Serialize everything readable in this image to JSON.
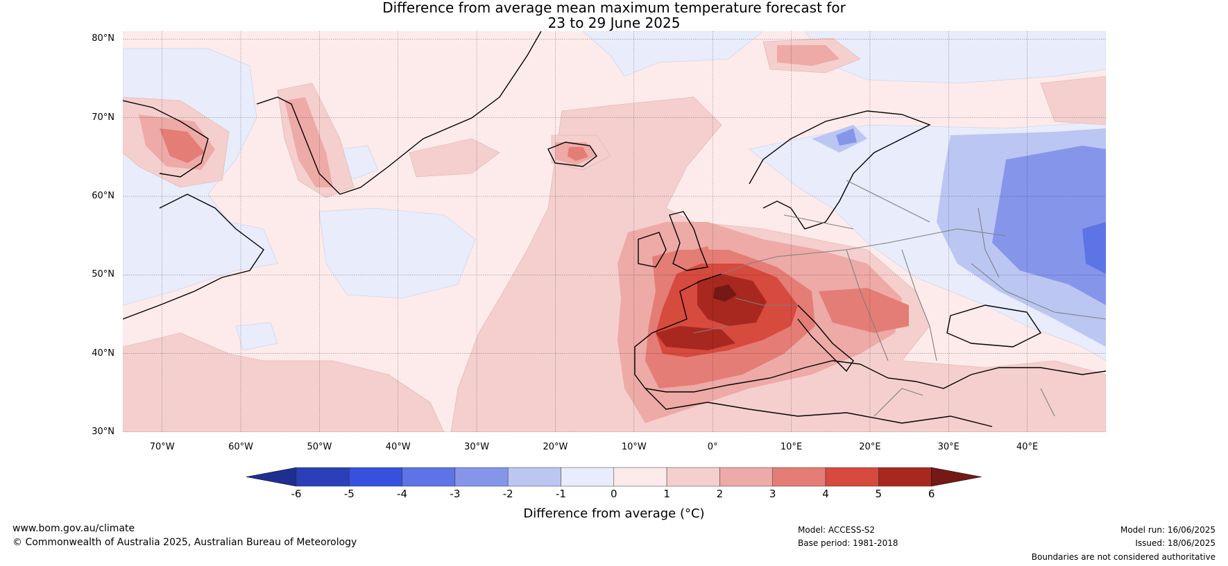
{
  "title_line1": "Difference from average mean maximum temperature forecast for",
  "title_line2": "23 to 29 June 2025",
  "lat_labels": [
    "80°N",
    "70°N",
    "60°N",
    "50°N",
    "40°N",
    "30°N"
  ],
  "lat_values": [
    80,
    70,
    60,
    50,
    40,
    30
  ],
  "lon_labels": [
    "70°W",
    "60°W",
    "50°W",
    "40°W",
    "30°W",
    "20°W",
    "10°W",
    "0°",
    "10°E",
    "20°E",
    "30°E",
    "40°E"
  ],
  "lon_values": [
    -70,
    -60,
    -50,
    -40,
    -30,
    -20,
    -10,
    0,
    10,
    20,
    30,
    40
  ],
  "map_extent": {
    "lon": [
      -75,
      50
    ],
    "lat": [
      30,
      81
    ]
  },
  "colorbar": {
    "title": "Difference from average (°C)",
    "ticks": [
      "-6",
      "-5",
      "-4",
      "-3",
      "-2",
      "-1",
      "0",
      "1",
      "2",
      "3",
      "4",
      "5",
      "6"
    ],
    "colors": [
      "#1f2f8f",
      "#2a3fb8",
      "#3551dd",
      "#5d74e6",
      "#8596ea",
      "#bcc6f3",
      "#e8ecfb",
      "#fcebea",
      "#f4cfcd",
      "#edaaa6",
      "#e47d75",
      "#d74a3e",
      "#a8281f",
      "#741915"
    ],
    "units": "°C"
  },
  "background_color": "#fcebea",
  "footer": {
    "website": "www.bom.gov.au/climate",
    "copyright": "© Commonwealth of Australia 2025, Australian Bureau of Meteorology",
    "model": "Model: ACCESS-S2",
    "base_period": "Base period: 1981-2018",
    "model_run": "Model run: 16/06/2025",
    "issued": "Issued: 18/06/2025",
    "disclaimer": "Boundaries are not considered authoritative"
  }
}
